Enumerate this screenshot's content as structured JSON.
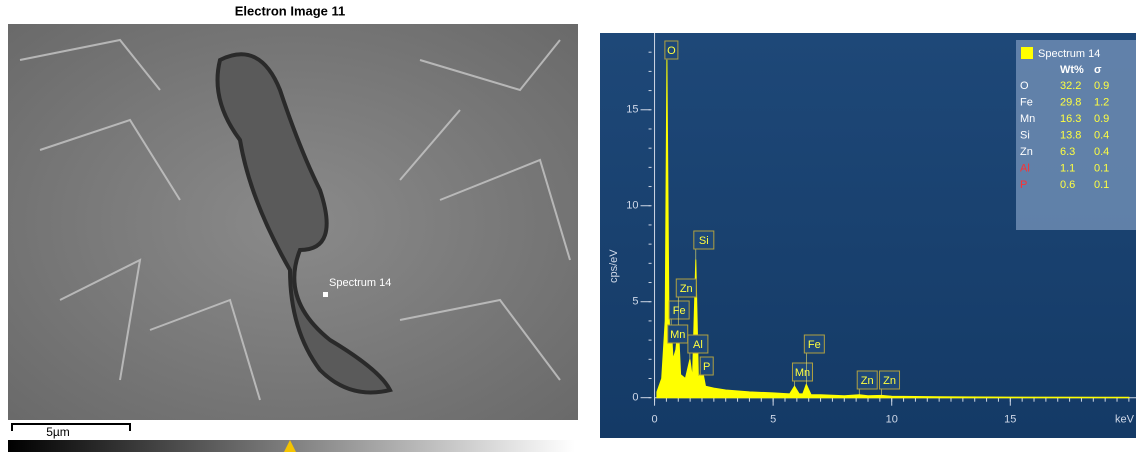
{
  "image": {
    "title": "Electron Image 11",
    "spot_label": "Spectrum 14",
    "scale_label": "5µm"
  },
  "chart_data": {
    "type": "spectrum",
    "color": "#ffff00",
    "ylabel": "cps/eV",
    "xunit": "keV",
    "x": [
      0.1,
      0.3,
      0.45,
      0.52,
      0.6,
      0.64,
      0.7,
      0.78,
      0.9,
      1.0,
      1.1,
      1.3,
      1.49,
      1.6,
      1.74,
      1.85,
      2.01,
      2.15,
      2.5,
      3,
      4,
      5,
      5.7,
      5.9,
      6.1,
      6.25,
      6.4,
      6.6,
      7,
      8,
      8.63,
      9,
      9.57,
      10,
      12,
      15,
      20
    ],
    "values": [
      0.3,
      1,
      4,
      17.6,
      5,
      3.2,
      3.8,
      2,
      2.5,
      3.8,
      1.2,
      1,
      2,
      1,
      7.2,
      1,
      1.5,
      0.6,
      0.5,
      0.4,
      0.3,
      0.25,
      0.2,
      0.6,
      0.2,
      0.2,
      0.7,
      0.15,
      0.15,
      0.1,
      0.15,
      0.1,
      0.12,
      0.08,
      0.05,
      0.03,
      0.02
    ],
    "xlim": [
      -2.3,
      20.3
    ],
    "ylim": [
      -2.1,
      19
    ],
    "xticks": [
      0,
      5,
      10,
      15
    ],
    "yticks": [
      0,
      5,
      10,
      15
    ],
    "annotations": [
      {
        "label": "O",
        "x": 0.52
      },
      {
        "label": "Fe",
        "x": 0.7
      },
      {
        "label": "Mn",
        "x": 0.64
      },
      {
        "label": "Zn",
        "x": 1.0
      },
      {
        "label": "Al",
        "x": 1.49
      },
      {
        "label": "Si",
        "x": 1.74
      },
      {
        "label": "P",
        "x": 2.01
      },
      {
        "label": "Mn",
        "x": 5.9
      },
      {
        "label": "Fe",
        "x": 6.4
      },
      {
        "label": "Zn",
        "x": 8.63
      },
      {
        "label": "Zn",
        "x": 9.57
      }
    ],
    "legend": {
      "title": "Spectrum 14",
      "headers": [
        "Wt%",
        "σ"
      ],
      "rows": [
        {
          "element": "O",
          "wt": 32.2,
          "sigma": 0.9,
          "color": "#ffffff"
        },
        {
          "element": "Fe",
          "wt": 29.8,
          "sigma": 1.2,
          "color": "#ffffff"
        },
        {
          "element": "Mn",
          "wt": 16.3,
          "sigma": 0.9,
          "color": "#ffffff"
        },
        {
          "element": "Si",
          "wt": 13.8,
          "sigma": 0.4,
          "color": "#ffffff"
        },
        {
          "element": "Zn",
          "wt": 6.3,
          "sigma": 0.4,
          "color": "#ffffff"
        },
        {
          "element": "Al",
          "wt": 1.1,
          "sigma": 0.1,
          "color": "#ff3030"
        },
        {
          "element": "P",
          "wt": 0.6,
          "sigma": 0.1,
          "color": "#ff3030"
        }
      ]
    }
  }
}
